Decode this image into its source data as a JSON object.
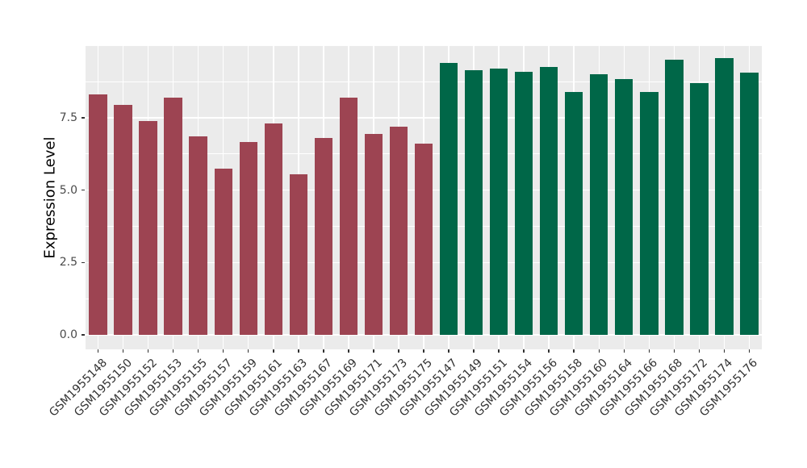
{
  "figure": {
    "background": "#FFFFFF",
    "panel_background": "#EBEBEB",
    "gridline_color": "#FFFFFF"
  },
  "chart_data": {
    "type": "bar",
    "title": "",
    "xlabel": "",
    "ylabel": "Expression Level",
    "ylim": [
      0,
      10
    ],
    "yticks": [
      0,
      2.5,
      5,
      7.5
    ],
    "ytick_labels": [
      "0.0",
      "2.5",
      "5.0",
      "7.5"
    ],
    "minor_gridlines": [
      1.25,
      3.75,
      6.25,
      8.75
    ],
    "grid": "on",
    "legend": "none",
    "categories": [
      "GSM1955148",
      "GSM1955150",
      "GSM1955152",
      "GSM1955153",
      "GSM1955155",
      "GSM1955157",
      "GSM1955159",
      "GSM1955161",
      "GSM1955163",
      "GSM1955167",
      "GSM1955169",
      "GSM1955171",
      "GSM1955173",
      "GSM1955175",
      "GSM1955147",
      "GSM1955149",
      "GSM1955151",
      "GSM1955154",
      "GSM1955156",
      "GSM1955158",
      "GSM1955160",
      "GSM1955164",
      "GSM1955166",
      "GSM1955168",
      "GSM1955172",
      "GSM1955174",
      "GSM1955176"
    ],
    "values": [
      8.3,
      7.95,
      7.4,
      8.2,
      6.85,
      5.75,
      6.65,
      7.3,
      5.55,
      6.8,
      8.2,
      6.95,
      7.2,
      6.6,
      9.4,
      9.15,
      9.2,
      9.1,
      9.25,
      8.4,
      9.0,
      8.85,
      8.4,
      9.5,
      8.7,
      9.55,
      9.05
    ],
    "groups": [
      0,
      0,
      0,
      0,
      0,
      0,
      0,
      0,
      0,
      0,
      0,
      0,
      0,
      0,
      1,
      1,
      1,
      1,
      1,
      1,
      1,
      1,
      1,
      1,
      1,
      1,
      1
    ],
    "group_colors": [
      "#9D4452",
      "#006748"
    ]
  }
}
